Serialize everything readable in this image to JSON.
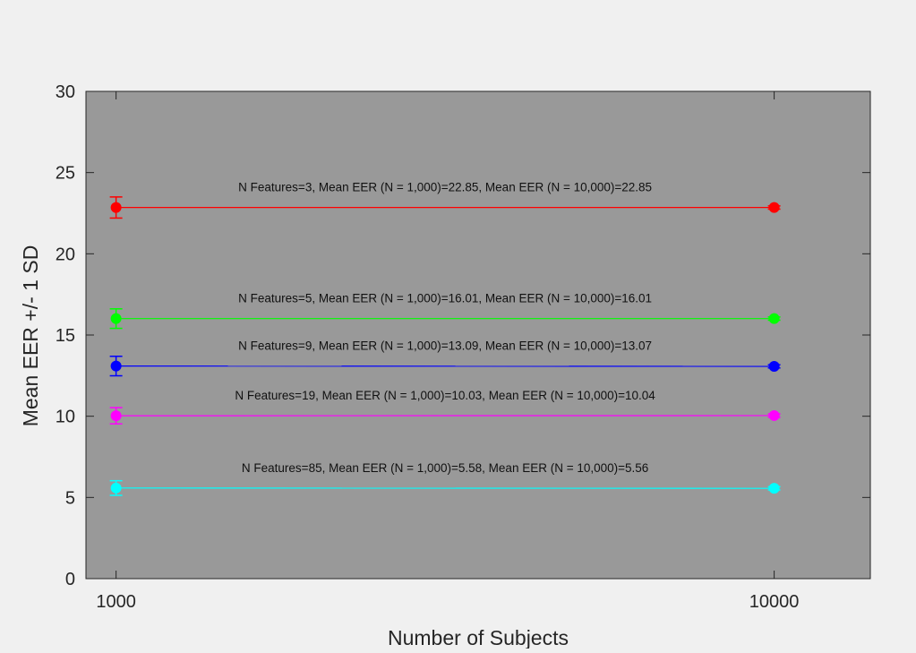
{
  "chart_data": {
    "type": "line",
    "title": "",
    "xlabel": "Number of Subjects",
    "ylabel": "Mean EER +/- 1 SD",
    "x_scale": "log",
    "xlim": [
      900,
      14000
    ],
    "ylim": [
      0,
      30
    ],
    "x_ticks": [
      1000,
      10000
    ],
    "x_tick_labels": [
      "1000",
      "10000"
    ],
    "y_ticks": [
      0,
      5,
      10,
      15,
      20,
      25,
      30
    ],
    "y_tick_labels": [
      "0",
      "5",
      "10",
      "15",
      "20",
      "25",
      "30"
    ],
    "grid": false,
    "plot_background": "#999999",
    "figure_background": "#f0f0f0",
    "series": [
      {
        "color": "#ff0000",
        "x": [
          1000,
          10000
        ],
        "y": [
          22.85,
          22.85
        ],
        "sd": [
          0.65,
          0.1
        ],
        "annotation": "N Features=3, Mean EER (N = 1,000)=22.85, Mean EER (N = 10,000)=22.85"
      },
      {
        "color": "#00ff00",
        "x": [
          1000,
          10000
        ],
        "y": [
          16.01,
          16.01
        ],
        "sd": [
          0.6,
          0.1
        ],
        "annotation": "N Features=5, Mean EER (N = 1,000)=16.01, Mean EER (N = 10,000)=16.01"
      },
      {
        "color": "#0000ff",
        "x": [
          1000,
          10000
        ],
        "y": [
          13.09,
          13.07
        ],
        "sd": [
          0.6,
          0.1
        ],
        "annotation": "N Features=9, Mean EER (N = 1,000)=13.09, Mean EER (N = 10,000)=13.07"
      },
      {
        "color": "#ff00ff",
        "x": [
          1000,
          10000
        ],
        "y": [
          10.03,
          10.04
        ],
        "sd": [
          0.5,
          0.1
        ],
        "annotation": "N Features=19, Mean EER (N = 1,000)=10.03, Mean EER (N = 10,000)=10.04"
      },
      {
        "color": "#00ffff",
        "x": [
          1000,
          10000
        ],
        "y": [
          5.58,
          5.56
        ],
        "sd": [
          0.45,
          0.1
        ],
        "annotation": "N Features=85, Mean EER (N = 1,000)=5.58, Mean EER (N = 10,000)=5.56"
      }
    ]
  }
}
